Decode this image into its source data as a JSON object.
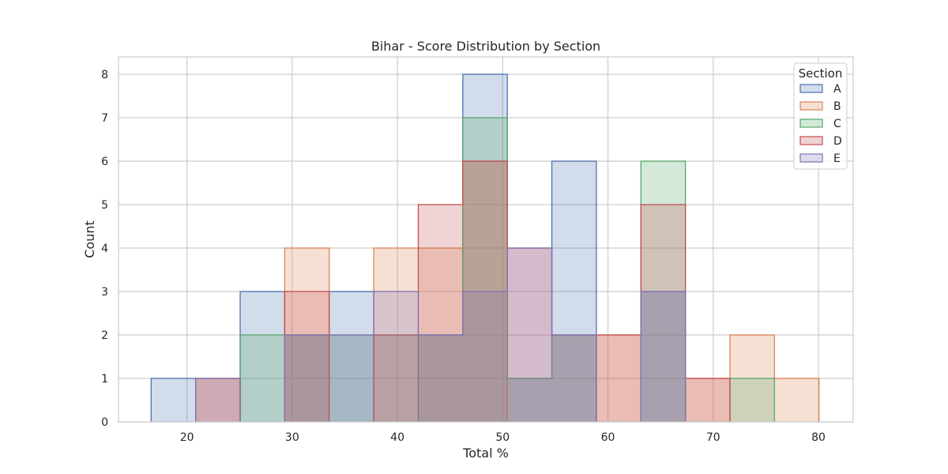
{
  "chart_data": {
    "type": "histogram",
    "title": "Bihar - Score Distribution by Section",
    "xlabel": "Total %",
    "ylabel": "Count",
    "xlim": [
      13.5,
      83.3
    ],
    "ylim": [
      0,
      8.4
    ],
    "xticks": [
      20,
      30,
      40,
      50,
      60,
      70,
      80
    ],
    "yticks": [
      0,
      1,
      2,
      3,
      4,
      5,
      6,
      7,
      8
    ],
    "grid": true,
    "bin_edges": [
      16.6,
      20.83,
      25.06,
      29.29,
      33.52,
      37.75,
      41.98,
      46.21,
      50.44,
      54.67,
      58.9,
      63.13,
      67.36,
      71.59,
      75.82,
      80.05
    ],
    "legend": {
      "title": "Section",
      "position": "top-right"
    },
    "series": [
      {
        "name": "A",
        "color": "#4c72b0",
        "counts": [
          1,
          0,
          3,
          2,
          3,
          0,
          2,
          8,
          1,
          6,
          0,
          3,
          0,
          0,
          0
        ]
      },
      {
        "name": "B",
        "color": "#dd8452",
        "counts": [
          0,
          1,
          0,
          4,
          0,
          4,
          4,
          6,
          0,
          0,
          2,
          0,
          1,
          2,
          1
        ]
      },
      {
        "name": "C",
        "color": "#55a868",
        "counts": [
          0,
          0,
          2,
          2,
          2,
          2,
          2,
          7,
          1,
          2,
          0,
          6,
          0,
          1,
          0
        ]
      },
      {
        "name": "D",
        "color": "#c44e52",
        "counts": [
          0,
          1,
          0,
          3,
          0,
          2,
          5,
          6,
          4,
          2,
          2,
          5,
          1,
          0,
          0
        ]
      },
      {
        "name": "E",
        "color": "#8172b3",
        "counts": [
          0,
          1,
          0,
          2,
          2,
          3,
          2,
          3,
          4,
          2,
          0,
          3,
          0,
          0,
          0
        ]
      }
    ]
  }
}
